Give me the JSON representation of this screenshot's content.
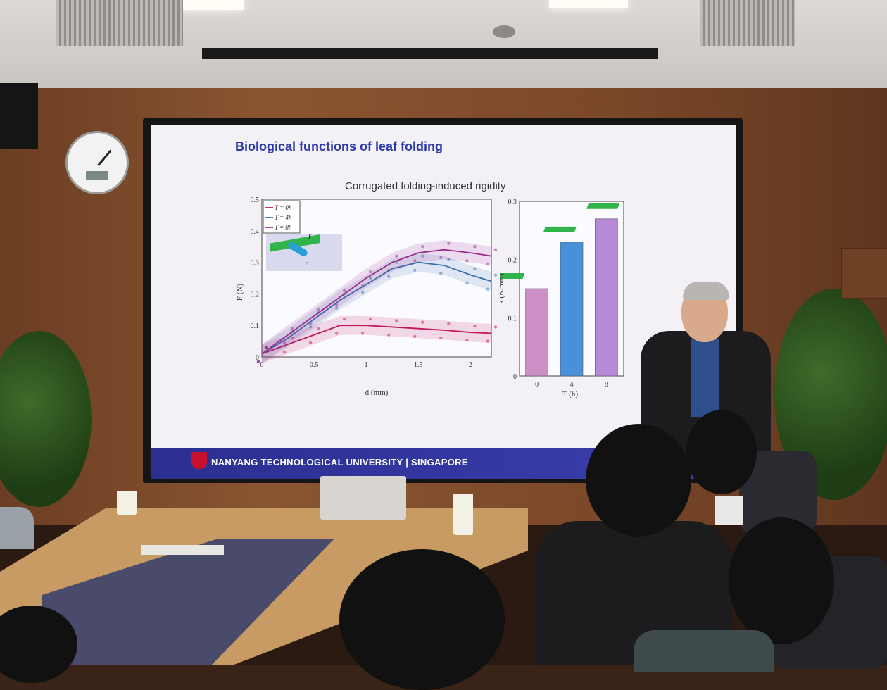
{
  "slide": {
    "title": "Biological functions of leaf folding",
    "chart_title": "Corrugated folding-induced rigidity",
    "footer_text": "NANYANG TECHNOLOGICAL UNIVERSITY | SINGAPORE",
    "inset_force_label": "F",
    "inset_disp_label": "d"
  },
  "chart_data": [
    {
      "type": "line",
      "xlabel": "d (mm)",
      "ylabel": "F (N)",
      "xlim": [
        0,
        2.2
      ],
      "ylim": [
        0,
        0.5
      ],
      "x_ticks": [
        "0",
        "0.5",
        "1",
        "1.5",
        "2"
      ],
      "y_ticks": [
        "0",
        "0.1",
        "0.2",
        "0.3",
        "0.4",
        "0.5"
      ],
      "legend": [
        "T = 0h",
        "T = 4h",
        "T = 8h"
      ],
      "legend_position": "top-left",
      "series": [
        {
          "name": "T = 0h",
          "color": "#c2185b",
          "x": [
            0,
            0.25,
            0.5,
            0.75,
            1.0,
            1.25,
            1.5,
            1.75,
            2.0,
            2.2
          ],
          "y": [
            0.01,
            0.04,
            0.07,
            0.1,
            0.1,
            0.095,
            0.09,
            0.085,
            0.078,
            0.075
          ]
        },
        {
          "name": "T = 4h",
          "color": "#3a6fb0",
          "x": [
            0,
            0.25,
            0.5,
            0.75,
            1.0,
            1.25,
            1.5,
            1.75,
            2.0,
            2.2
          ],
          "y": [
            0.01,
            0.06,
            0.12,
            0.18,
            0.23,
            0.28,
            0.3,
            0.29,
            0.26,
            0.24
          ]
        },
        {
          "name": "T = 8h",
          "color": "#9b2d8a",
          "x": [
            0,
            0.25,
            0.5,
            0.75,
            1.0,
            1.25,
            1.5,
            1.75,
            2.0,
            2.2
          ],
          "y": [
            0.01,
            0.07,
            0.13,
            0.19,
            0.25,
            0.3,
            0.33,
            0.34,
            0.33,
            0.32
          ]
        }
      ]
    },
    {
      "type": "bar",
      "xlabel": "T (h)",
      "ylabel": "k (N/mm)",
      "categories": [
        "0",
        "4",
        "8"
      ],
      "values": [
        0.15,
        0.23,
        0.27
      ],
      "colors": [
        "#cc8fc6",
        "#4a90d9",
        "#b58ad6"
      ],
      "ylim": [
        0,
        0.3
      ],
      "y_ticks": [
        "0",
        "0.1",
        "0.2",
        "0.3"
      ]
    }
  ]
}
